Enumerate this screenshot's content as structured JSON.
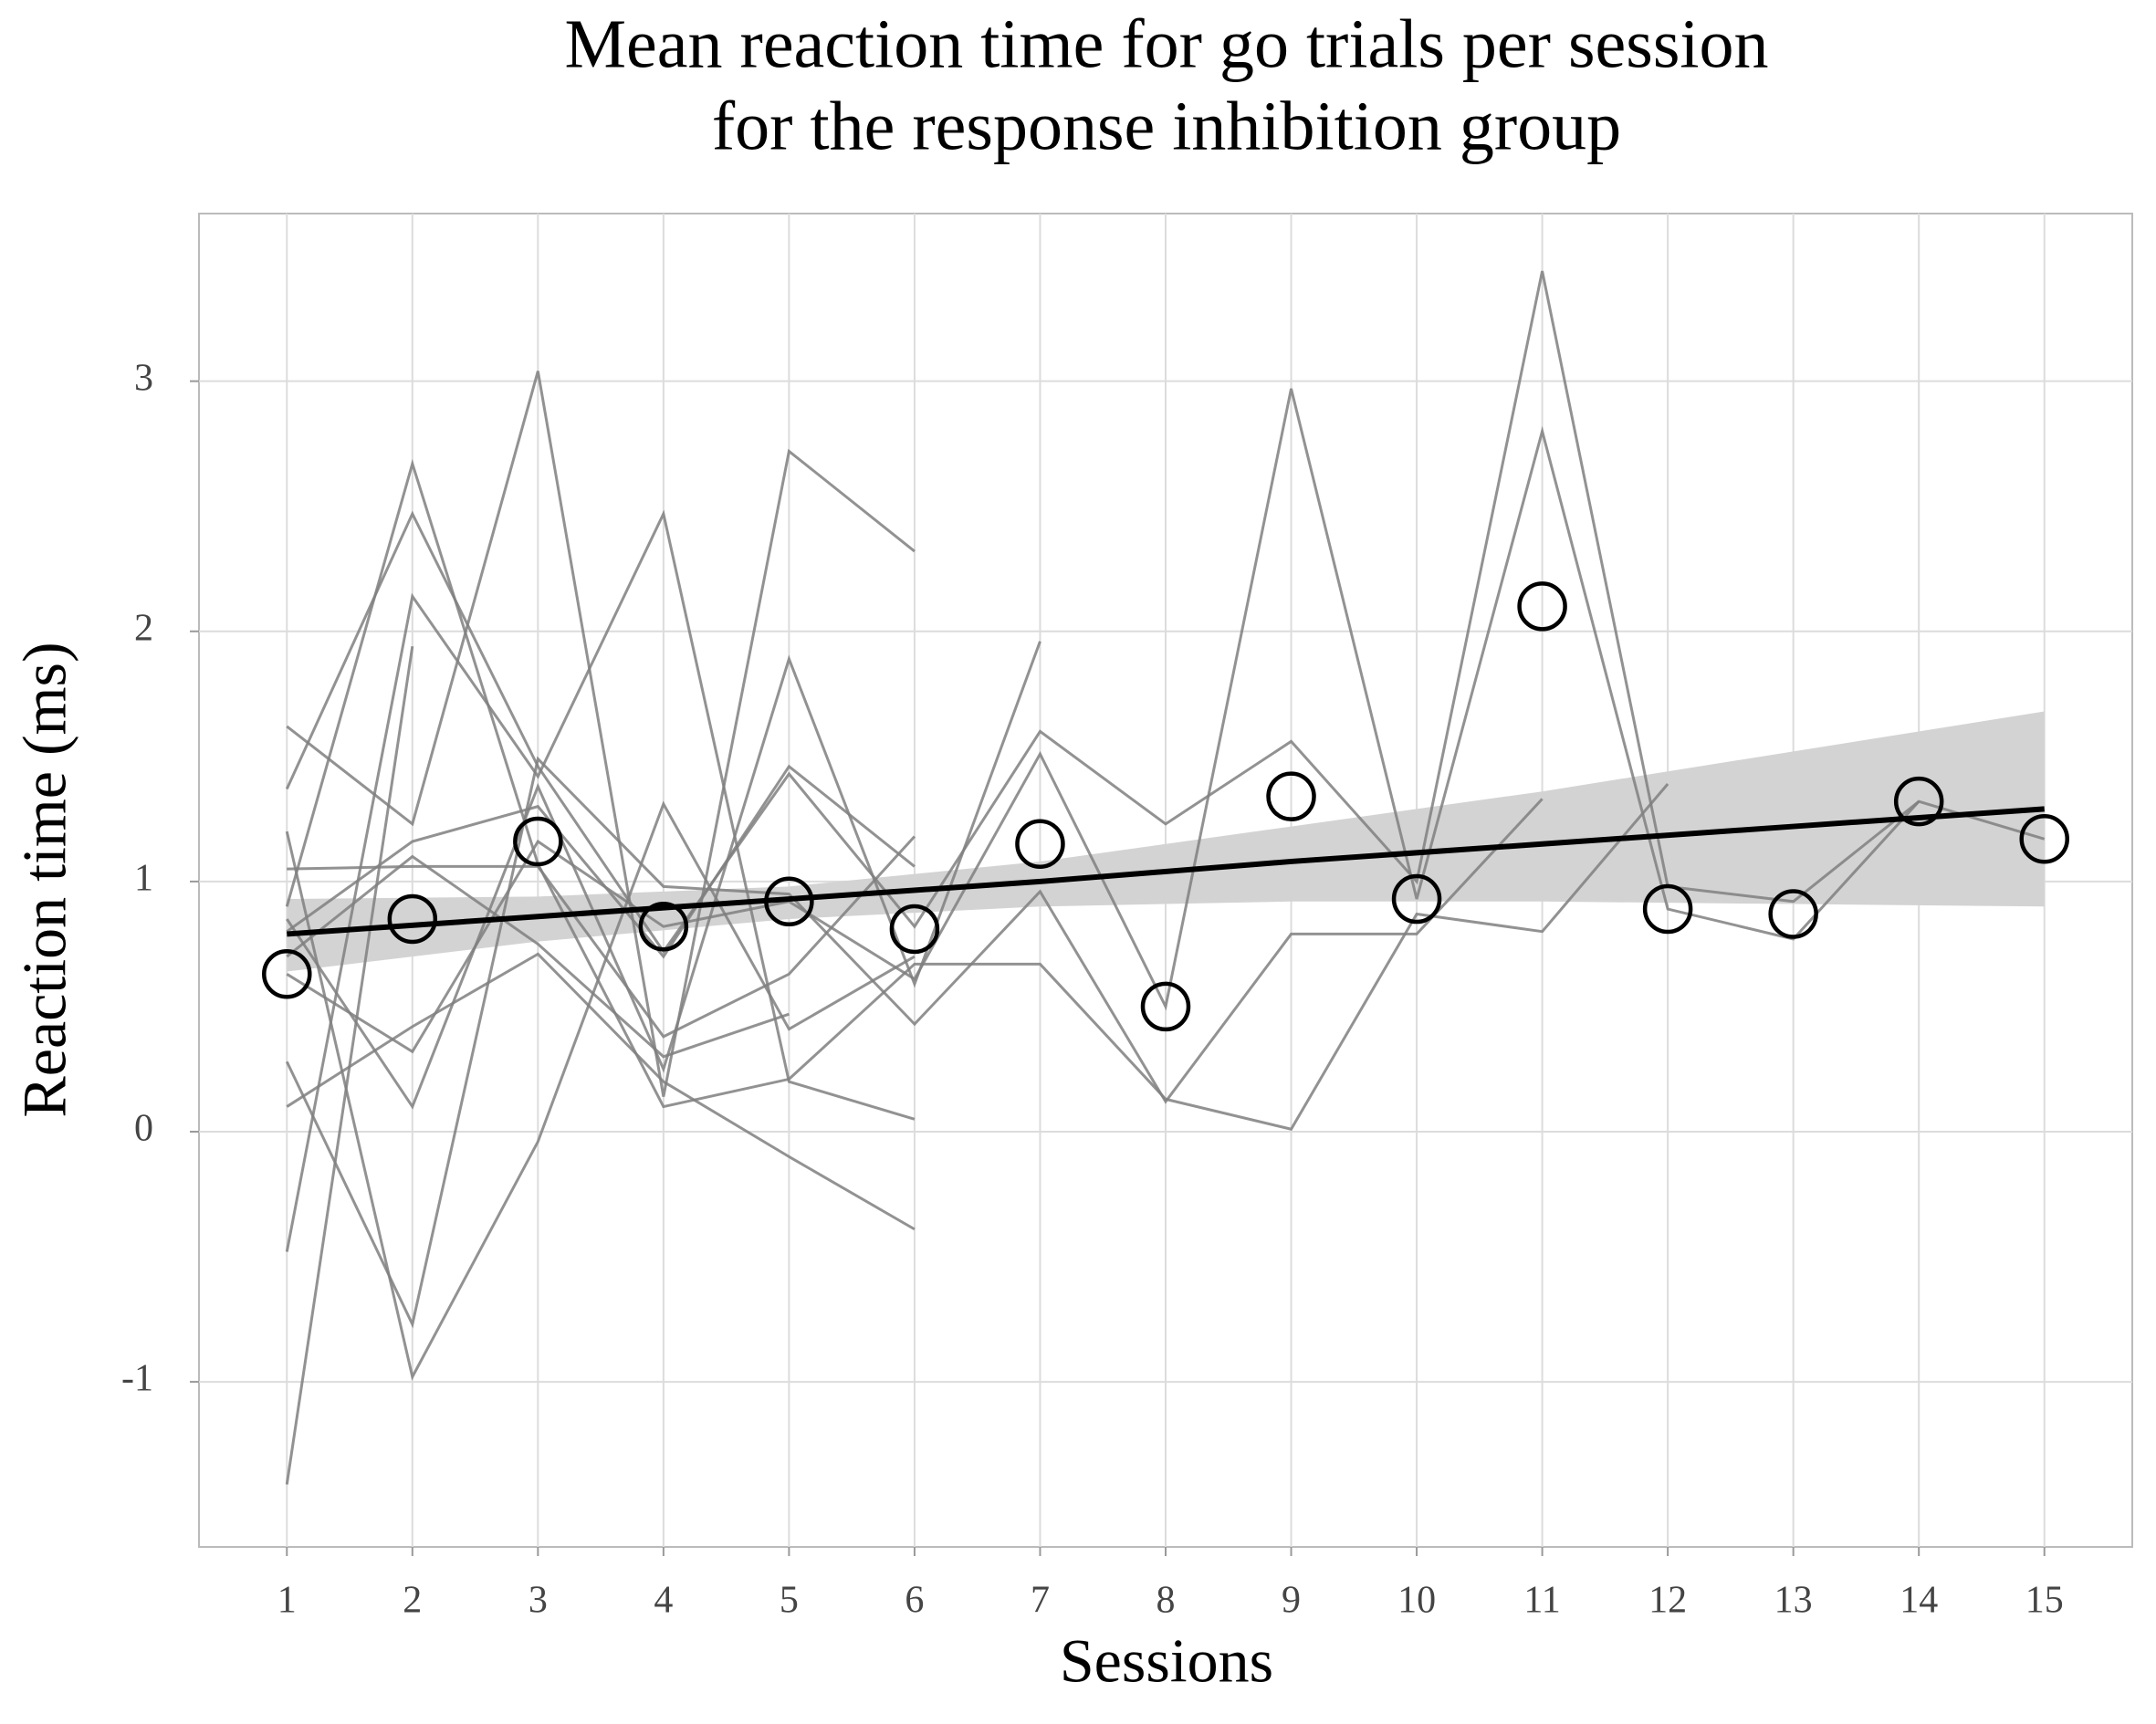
{
  "chart_data": {
    "type": "line",
    "title": [
      "Mean reaction time for go trials per session",
      "for the response inhibition group"
    ],
    "x_label": "Sessions",
    "y_label": "Reaction time (ms)",
    "x": [
      1,
      2,
      3,
      4,
      5,
      6,
      7,
      8,
      9,
      10,
      11,
      12,
      13,
      14,
      15
    ],
    "xlim": [
      0.3,
      15.7
    ],
    "ylim": [
      -1.66,
      3.67
    ],
    "xticks": [
      1,
      2,
      3,
      4,
      5,
      6,
      7,
      8,
      9,
      10,
      11,
      12,
      13,
      14,
      15
    ],
    "yticks": [
      -1,
      0,
      1,
      2,
      3
    ],
    "grid": true,
    "subject_color": "#7f7f7f",
    "subjects": [
      {
        "values": [
          1.37,
          2.47,
          1.46,
          0.72,
          1.43,
          0.82,
          1.6,
          1.23,
          1.56,
          1.0,
          3.44,
          0.98,
          0.92,
          1.32,
          1.17
        ]
      },
      {
        "values": [
          0.63,
          0.32,
          1.16,
          0.82,
          0.92,
          0.61,
          1.51,
          0.5,
          2.97,
          0.93,
          2.8,
          0.89,
          0.77,
          1.32,
          null
        ]
      },
      {
        "values": [
          0.9,
          2.67,
          1.07,
          0.1,
          0.21,
          0.67,
          0.67,
          0.13,
          0.01,
          0.87,
          0.8,
          1.39,
          null,
          null,
          null
        ]
      },
      {
        "values": [
          -1.41,
          1.94,
          null,
          null,
          null,
          null,
          null,
          null,
          null,
          null,
          null,
          null,
          null,
          null,
          null
        ]
      },
      {
        "values": [
          1.62,
          1.23,
          3.04,
          0.14,
          2.72,
          2.32,
          null,
          null,
          null,
          null,
          null,
          null,
          null,
          null,
          null
        ]
      },
      {
        "values": [
          -0.48,
          2.14,
          1.42,
          2.47,
          0.2,
          0.05,
          null,
          null,
          null,
          null,
          null,
          null,
          null,
          null,
          null
        ]
      },
      {
        "values": [
          0.28,
          -0.77,
          1.49,
          0.98,
          0.95,
          0.43,
          0.96,
          0.12,
          0.79,
          0.79,
          1.33,
          null,
          null,
          null,
          null
        ]
      },
      {
        "values": [
          1.2,
          -0.98,
          -0.04,
          1.31,
          0.41,
          0.7,
          null,
          null,
          null,
          null,
          null,
          null,
          null,
          null,
          null
        ]
      },
      {
        "values": [
          1.05,
          1.06,
          1.06,
          0.38,
          0.63,
          1.18,
          null,
          null,
          null,
          null,
          null,
          null,
          null,
          null,
          null
        ]
      },
      {
        "values": [
          0.1,
          0.42,
          0.71,
          0.2,
          -0.1,
          -0.39,
          null,
          null,
          null,
          null,
          null,
          null,
          null,
          null,
          null
        ]
      },
      {
        "values": [
          0.85,
          0.1,
          1.38,
          0.25,
          1.89,
          0.59,
          1.96,
          null,
          null,
          null,
          null,
          null,
          null,
          null,
          null
        ]
      },
      {
        "values": [
          0.8,
          1.16,
          1.3,
          0.7,
          1.46,
          1.06,
          null,
          null,
          null,
          null,
          null,
          null,
          null,
          null,
          null
        ]
      },
      {
        "values": [
          0.7,
          1.1,
          0.75,
          0.3,
          0.47,
          null,
          null,
          null,
          null,
          null,
          null,
          null,
          null,
          null,
          null
        ]
      }
    ],
    "means": {
      "color": "#000000",
      "values": [
        0.63,
        0.85,
        1.16,
        0.82,
        0.92,
        0.81,
        1.15,
        0.5,
        1.34,
        0.93,
        2.1,
        0.89,
        0.87,
        1.32,
        1.17
      ]
    },
    "fit": {
      "color": "#000000",
      "band_color": "#d3d3d3",
      "x": [
        1,
        3,
        5,
        7,
        9,
        11,
        13,
        15
      ],
      "values": [
        0.79,
        0.86,
        0.93,
        1.0,
        1.08,
        1.15,
        1.22,
        1.29
      ],
      "lower": [
        0.64,
        0.76,
        0.85,
        0.9,
        0.92,
        0.92,
        0.91,
        0.9
      ],
      "upper": [
        0.93,
        0.94,
        0.98,
        1.08,
        1.22,
        1.36,
        1.52,
        1.68
      ]
    }
  }
}
